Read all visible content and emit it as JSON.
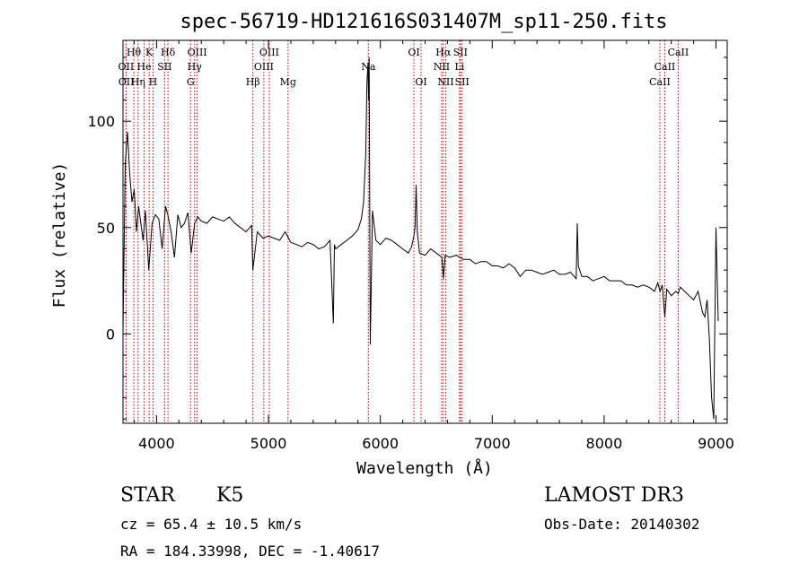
{
  "chart_data": {
    "type": "line",
    "title": "spec-56719-HD121616S031407M_sp11-250.fits",
    "xlabel": "Wavelength (Å)",
    "ylabel": "Flux (relative)",
    "xlim": [
      3700,
      9100
    ],
    "ylim": [
      -42,
      138
    ],
    "xticks": [
      4000,
      5000,
      6000,
      7000,
      8000,
      9000
    ],
    "yticks": [
      0,
      50,
      100
    ],
    "grid": false,
    "series": [
      {
        "name": "flux",
        "x": [
          3700,
          3720,
          3740,
          3760,
          3780,
          3800,
          3820,
          3840,
          3860,
          3880,
          3900,
          3930,
          3960,
          3990,
          4020,
          4050,
          4080,
          4100,
          4130,
          4160,
          4190,
          4220,
          4250,
          4280,
          4310,
          4340,
          4370,
          4400,
          4450,
          4500,
          4550,
          4600,
          4650,
          4700,
          4750,
          4800,
          4850,
          4860,
          4900,
          4950,
          5000,
          5050,
          5100,
          5150,
          5200,
          5250,
          5300,
          5350,
          5400,
          5450,
          5500,
          5550,
          5580,
          5590,
          5600,
          5650,
          5700,
          5750,
          5800,
          5830,
          5850,
          5870,
          5880,
          5890,
          5895,
          5900,
          5910,
          5930,
          5960,
          6000,
          6050,
          6100,
          6150,
          6200,
          6250,
          6280,
          6300,
          6310,
          6320,
          6330,
          6350,
          6400,
          6450,
          6500,
          6550,
          6563,
          6580,
          6620,
          6680,
          6740,
          6800,
          6850,
          6900,
          6950,
          7000,
          7050,
          7100,
          7150,
          7200,
          7250,
          7300,
          7350,
          7400,
          7450,
          7500,
          7550,
          7600,
          7650,
          7700,
          7750,
          7760,
          7770,
          7800,
          7850,
          7900,
          7950,
          8000,
          8050,
          8100,
          8150,
          8200,
          8250,
          8300,
          8350,
          8400,
          8450,
          8480,
          8500,
          8520,
          8542,
          8560,
          8600,
          8640,
          8662,
          8680,
          8720,
          8760,
          8800,
          8840,
          8880,
          8900,
          8920,
          8940,
          8960,
          8980,
          9000,
          9020
        ],
        "values": [
          1,
          80,
          95,
          75,
          62,
          68,
          48,
          60,
          52,
          44,
          58,
          30,
          52,
          56,
          54,
          40,
          60,
          56,
          48,
          36,
          56,
          50,
          52,
          57,
          38,
          52,
          55,
          53,
          52,
          55,
          54,
          53,
          55,
          52,
          50,
          48,
          51,
          30,
          48,
          45,
          46,
          45,
          44,
          48,
          43,
          42,
          41,
          43,
          42,
          40,
          41,
          44,
          5,
          42,
          40,
          42,
          44,
          46,
          49,
          54,
          62,
          85,
          118,
          127,
          110,
          130,
          -5,
          58,
          44,
          42,
          45,
          44,
          42,
          40,
          38,
          41,
          46,
          50,
          70,
          48,
          38,
          37,
          40,
          38,
          36,
          26,
          37,
          36,
          37,
          35,
          35,
          33,
          34,
          34,
          32,
          32,
          31,
          33,
          31,
          27,
          30,
          30,
          29,
          28,
          29,
          30,
          28,
          28,
          29,
          26,
          52,
          32,
          27,
          27,
          25,
          26,
          27,
          25,
          25,
          25,
          23,
          23,
          22,
          23,
          22,
          20,
          24,
          20,
          23,
          8,
          21,
          18,
          20,
          19,
          22,
          20,
          18,
          16,
          20,
          10,
          8,
          16,
          -2,
          -30,
          -40,
          50,
          6
        ],
        "annotations": [
          "Na line peak near 5893 Å"
        ]
      }
    ],
    "lines": [
      {
        "label": "Hθ",
        "x": 3797,
        "row": 1
      },
      {
        "label": "OII",
        "x": 3727,
        "row": 2
      },
      {
        "label": "OII",
        "x": 3729,
        "row": 3
      },
      {
        "label": "Hη",
        "x": 3835,
        "row": 3
      },
      {
        "label": "K",
        "x": 3934,
        "row": 1
      },
      {
        "label": "He",
        "x": 3889,
        "row": 2
      },
      {
        "label": "H",
        "x": 3968,
        "row": 3
      },
      {
        "label": "Hδ",
        "x": 4102,
        "row": 1
      },
      {
        "label": "SII",
        "x": 4072,
        "row": 2
      },
      {
        "label": "OIII",
        "x": 4363,
        "row": 1
      },
      {
        "label": "Hγ",
        "x": 4340,
        "row": 2
      },
      {
        "label": "G",
        "x": 4304,
        "row": 3
      },
      {
        "label": "OIII",
        "x": 5007,
        "row": 1
      },
      {
        "label": "OIII",
        "x": 4959,
        "row": 2
      },
      {
        "label": "Hβ",
        "x": 4861,
        "row": 3
      },
      {
        "label": "Mg",
        "x": 5175,
        "row": 3
      },
      {
        "label": "Na",
        "x": 5893,
        "row": 2
      },
      {
        "label": "OI",
        "x": 6300,
        "row": 1
      },
      {
        "label": "OI",
        "x": 6364,
        "row": 3
      },
      {
        "label": "Hα",
        "x": 6563,
        "row": 1
      },
      {
        "label": "NII",
        "x": 6548,
        "row": 2
      },
      {
        "label": "NII",
        "x": 6584,
        "row": 3
      },
      {
        "label": "SII",
        "x": 6716,
        "row": 1
      },
      {
        "label": "Li",
        "x": 6708,
        "row": 2
      },
      {
        "label": "SII",
        "x": 6731,
        "row": 3
      },
      {
        "label": "CaII",
        "x": 8662,
        "row": 1
      },
      {
        "label": "CaII",
        "x": 8542,
        "row": 2
      },
      {
        "label": "CaII",
        "x": 8498,
        "row": 3
      }
    ]
  },
  "info": {
    "class": "STAR",
    "subclass": "K5",
    "survey": "LAMOST DR3",
    "cz": "cz = 65.4 ± 10.5 km/s",
    "obs_date": "Obs-Date: 20140302",
    "coords": "RA = 184.33998, DEC =  -1.40617"
  },
  "colors": {
    "line": "#000000",
    "marker": "#cc0000",
    "background": "#ffffff"
  }
}
